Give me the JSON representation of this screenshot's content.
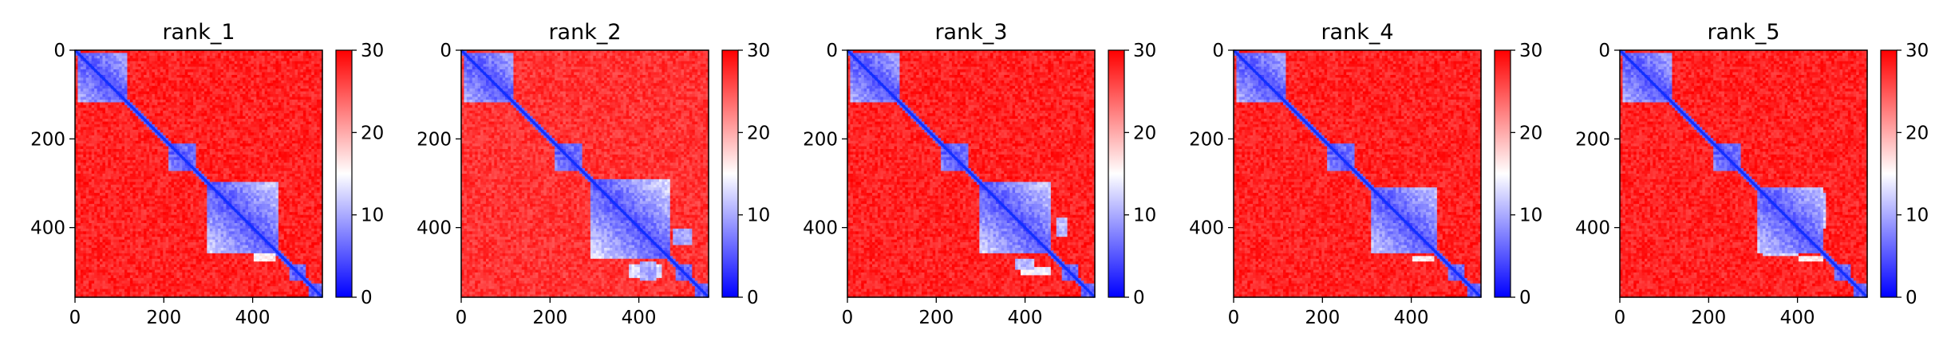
{
  "figure": {
    "panel_titles": [
      "rank_1",
      "rank_2",
      "rank_3",
      "rank_4",
      "rank_5"
    ]
  },
  "chart_data": [
    {
      "type": "heatmap",
      "title": "rank_1",
      "xlabel": "",
      "ylabel": "",
      "matrix_size": 557,
      "xlim": [
        0,
        557
      ],
      "ylim": [
        557,
        0
      ],
      "x_ticks": [
        0,
        200,
        400
      ],
      "y_ticks": [
        0,
        200,
        400
      ],
      "colorbar": {
        "min": 0,
        "max": 30,
        "ticks": [
          0,
          10,
          20,
          30
        ],
        "colormap": "bwr"
      },
      "colors": {
        "low": "#0000ff",
        "mid": "#ffffff",
        "high": "#ff0000"
      },
      "domains": [
        [
          5,
          115
        ],
        [
          210,
          275
        ],
        [
          300,
          460
        ],
        [
          480,
          520
        ],
        [
          525,
          557
        ]
      ],
      "off_diagonal_contacts": [
        {
          "x_range": [
            440,
            460
          ],
          "y_range": [
            310,
            395
          ],
          "distance": 12
        },
        {
          "x_range": [
            310,
            395
          ],
          "y_range": [
            440,
            460
          ],
          "distance": 12
        },
        {
          "x_range": [
            400,
            450
          ],
          "y_range": [
            460,
            475
          ],
          "distance": 16
        }
      ],
      "background_distance": 28
    },
    {
      "type": "heatmap",
      "title": "rank_2",
      "xlabel": "",
      "ylabel": "",
      "matrix_size": 557,
      "xlim": [
        0,
        557
      ],
      "ylim": [
        557,
        0
      ],
      "x_ticks": [
        0,
        200,
        400
      ],
      "y_ticks": [
        0,
        200,
        400
      ],
      "colorbar": {
        "min": 0,
        "max": 30,
        "ticks": [
          0,
          10,
          20,
          30
        ],
        "colormap": "bwr"
      },
      "colors": {
        "low": "#0000ff",
        "mid": "#ffffff",
        "high": "#ff0000"
      },
      "domains": [
        [
          5,
          115
        ],
        [
          210,
          275
        ],
        [
          290,
          470
        ],
        [
          480,
          520
        ],
        [
          525,
          557
        ]
      ],
      "off_diagonal_contacts": [
        {
          "x_range": [
            475,
            520
          ],
          "y_range": [
            400,
            440
          ],
          "distance": 10
        },
        {
          "x_range": [
            400,
            440
          ],
          "y_range": [
            475,
            520
          ],
          "distance": 10
        },
        {
          "x_range": [
            380,
            450
          ],
          "y_range": [
            480,
            515
          ],
          "distance": 13
        }
      ],
      "background_distance": 27
    },
    {
      "type": "heatmap",
      "title": "rank_3",
      "xlabel": "",
      "ylabel": "",
      "matrix_size": 557,
      "xlim": [
        0,
        557
      ],
      "ylim": [
        557,
        0
      ],
      "x_ticks": [
        0,
        200,
        400
      ],
      "y_ticks": [
        0,
        200,
        400
      ],
      "colorbar": {
        "min": 0,
        "max": 30,
        "ticks": [
          0,
          10,
          20,
          30
        ],
        "colormap": "bwr"
      },
      "colors": {
        "low": "#0000ff",
        "mid": "#ffffff",
        "high": "#ff0000"
      },
      "domains": [
        [
          5,
          115
        ],
        [
          210,
          275
        ],
        [
          300,
          460
        ],
        [
          480,
          520
        ],
        [
          525,
          557
        ]
      ],
      "off_diagonal_contacts": [
        {
          "x_range": [
            470,
            495
          ],
          "y_range": [
            380,
            420
          ],
          "distance": 11
        },
        {
          "x_range": [
            380,
            420
          ],
          "y_range": [
            470,
            495
          ],
          "distance": 11
        },
        {
          "x_range": [
            390,
            460
          ],
          "y_range": [
            490,
            505
          ],
          "distance": 15
        }
      ],
      "background_distance": 28
    },
    {
      "type": "heatmap",
      "title": "rank_4",
      "xlabel": "",
      "ylabel": "",
      "matrix_size": 557,
      "xlim": [
        0,
        557
      ],
      "ylim": [
        557,
        0
      ],
      "x_ticks": [
        0,
        200,
        400
      ],
      "y_ticks": [
        0,
        200,
        400
      ],
      "colorbar": {
        "min": 0,
        "max": 30,
        "ticks": [
          0,
          10,
          20,
          30
        ],
        "colormap": "bwr"
      },
      "colors": {
        "low": "#0000ff",
        "mid": "#ffffff",
        "high": "#ff0000"
      },
      "domains": [
        [
          5,
          115
        ],
        [
          210,
          275
        ],
        [
          310,
          460
        ],
        [
          480,
          520
        ],
        [
          525,
          557
        ]
      ],
      "off_diagonal_contacts": [
        {
          "x_range": [
            445,
            460
          ],
          "y_range": [
            310,
            400
          ],
          "distance": 12
        },
        {
          "x_range": [
            310,
            400
          ],
          "y_range": [
            445,
            460
          ],
          "distance": 12
        },
        {
          "x_range": [
            400,
            450
          ],
          "y_range": [
            465,
            478
          ],
          "distance": 16
        }
      ],
      "background_distance": 28
    },
    {
      "type": "heatmap",
      "title": "rank_5",
      "xlabel": "",
      "ylabel": "",
      "matrix_size": 557,
      "xlim": [
        0,
        557
      ],
      "ylim": [
        557,
        0
      ],
      "x_ticks": [
        0,
        200,
        400
      ],
      "y_ticks": [
        0,
        200,
        400
      ],
      "colorbar": {
        "min": 0,
        "max": 30,
        "ticks": [
          0,
          10,
          20,
          30
        ],
        "colormap": "bwr"
      },
      "colors": {
        "low": "#0000ff",
        "mid": "#ffffff",
        "high": "#ff0000"
      },
      "domains": [
        [
          5,
          115
        ],
        [
          210,
          275
        ],
        [
          310,
          460
        ],
        [
          480,
          520
        ],
        [
          525,
          557
        ]
      ],
      "off_diagonal_contacts": [
        {
          "x_range": [
            448,
            462
          ],
          "y_range": [
            320,
            400
          ],
          "distance": 12
        },
        {
          "x_range": [
            320,
            400
          ],
          "y_range": [
            448,
            462
          ],
          "distance": 12
        },
        {
          "x_range": [
            405,
            455
          ],
          "y_range": [
            465,
            478
          ],
          "distance": 16
        }
      ],
      "background_distance": 28
    }
  ]
}
